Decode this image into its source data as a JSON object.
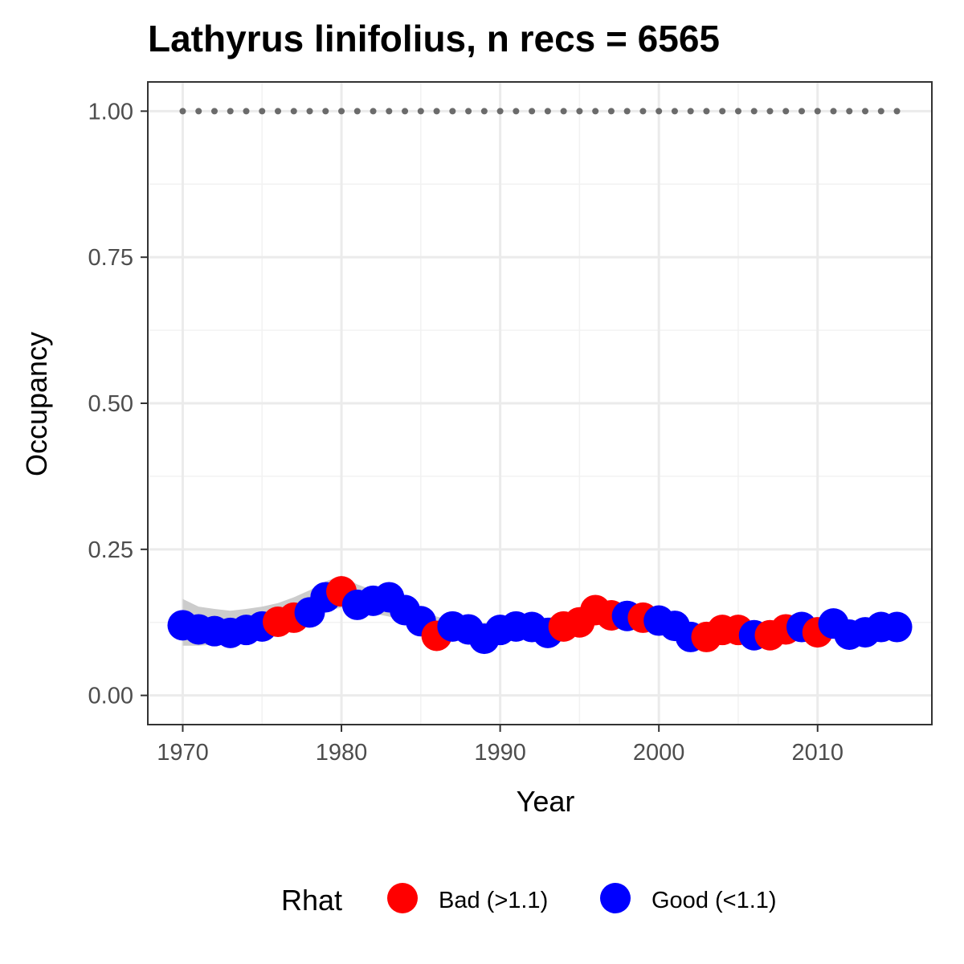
{
  "chart_data": {
    "type": "scatter",
    "title": "Lathyrus linifolius, n recs = 6565",
    "xlabel": "Year",
    "ylabel": "Occupancy",
    "xlim": [
      1967.8,
      2017.2
    ],
    "ylim": [
      -0.05,
      1.05
    ],
    "x_ticks": [
      1970,
      1980,
      1990,
      2000,
      2010
    ],
    "x_tick_labels": [
      "1970",
      "1980",
      "1990",
      "2000",
      "2010"
    ],
    "y_ticks": [
      0,
      0.25,
      0.5,
      0.75,
      1.0
    ],
    "y_tick_labels": [
      "0.00",
      "0.25",
      "0.50",
      "0.75",
      "1.00"
    ],
    "grid": true,
    "reference_line": {
      "y": 1.0,
      "style": "dotted",
      "color": "#6b6b6b",
      "x_range": [
        1970,
        2015
      ]
    },
    "ribbon": {
      "color": "#cccccc",
      "x": [
        1970,
        1971,
        1972,
        1973,
        1974,
        1975,
        1976,
        1977,
        1978,
        1979,
        1980,
        1981,
        1982,
        1983,
        1984,
        1985,
        1986,
        1987,
        1988,
        1989,
        1990,
        1991,
        1992,
        1993,
        1994,
        1995,
        1996,
        1997,
        1998,
        1999,
        2000,
        2001,
        2002,
        2003,
        2004,
        2005,
        2006,
        2007,
        2008,
        2009,
        2010,
        2011,
        2012,
        2013,
        2014,
        2015
      ],
      "lower": [
        0.085,
        0.085,
        0.087,
        0.088,
        0.093,
        0.1,
        0.112,
        0.122,
        0.132,
        0.145,
        0.15,
        0.145,
        0.14,
        0.135,
        0.125,
        0.115,
        0.102,
        0.099,
        0.097,
        0.097,
        0.1,
        0.103,
        0.105,
        0.107,
        0.113,
        0.12,
        0.125,
        0.126,
        0.125,
        0.122,
        0.116,
        0.11,
        0.103,
        0.098,
        0.098,
        0.098,
        0.097,
        0.097,
        0.098,
        0.1,
        0.102,
        0.103,
        0.102,
        0.101,
        0.102,
        0.103
      ],
      "upper": [
        0.165,
        0.152,
        0.148,
        0.145,
        0.148,
        0.152,
        0.158,
        0.168,
        0.18,
        0.195,
        0.205,
        0.19,
        0.18,
        0.18,
        0.168,
        0.15,
        0.135,
        0.128,
        0.124,
        0.124,
        0.126,
        0.128,
        0.13,
        0.133,
        0.138,
        0.145,
        0.15,
        0.15,
        0.148,
        0.144,
        0.138,
        0.13,
        0.123,
        0.118,
        0.118,
        0.117,
        0.117,
        0.116,
        0.117,
        0.12,
        0.122,
        0.124,
        0.123,
        0.122,
        0.123,
        0.124
      ]
    },
    "series": [
      {
        "name": "Occupancy",
        "x": [
          1970,
          1971,
          1972,
          1973,
          1974,
          1975,
          1976,
          1977,
          1978,
          1979,
          1980,
          1981,
          1982,
          1983,
          1984,
          1985,
          1986,
          1987,
          1988,
          1989,
          1990,
          1991,
          1992,
          1993,
          1994,
          1995,
          1996,
          1997,
          1998,
          1999,
          2000,
          2001,
          2002,
          2003,
          2004,
          2005,
          2006,
          2007,
          2008,
          2009,
          2010,
          2011,
          2012,
          2013,
          2014,
          2015
        ],
        "y": [
          0.12,
          0.113,
          0.11,
          0.107,
          0.112,
          0.118,
          0.126,
          0.133,
          0.142,
          0.168,
          0.178,
          0.155,
          0.162,
          0.168,
          0.146,
          0.127,
          0.102,
          0.118,
          0.113,
          0.097,
          0.112,
          0.118,
          0.117,
          0.107,
          0.118,
          0.125,
          0.146,
          0.137,
          0.136,
          0.133,
          0.128,
          0.119,
          0.1,
          0.1,
          0.112,
          0.112,
          0.103,
          0.103,
          0.113,
          0.117,
          0.108,
          0.123,
          0.104,
          0.108,
          0.117,
          0.117
        ],
        "rhat": [
          "good",
          "good",
          "good",
          "good",
          "good",
          "good",
          "bad",
          "bad",
          "good",
          "good",
          "bad",
          "good",
          "good",
          "good",
          "good",
          "good",
          "bad",
          "good",
          "good",
          "good",
          "good",
          "good",
          "good",
          "good",
          "bad",
          "bad",
          "bad",
          "bad",
          "good",
          "bad",
          "good",
          "good",
          "good",
          "bad",
          "bad",
          "bad",
          "good",
          "bad",
          "bad",
          "good",
          "bad",
          "good",
          "good",
          "good",
          "good",
          "good"
        ]
      }
    ],
    "legend": {
      "title": "Rhat",
      "position": "bottom",
      "items": [
        {
          "key": "bad",
          "label": "Bad (>1.1)",
          "color": "#ff0000"
        },
        {
          "key": "good",
          "label": "Good (<1.1)",
          "color": "#0000ff"
        }
      ]
    }
  }
}
